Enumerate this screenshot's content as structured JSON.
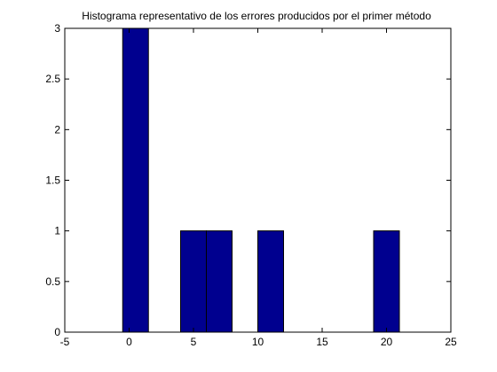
{
  "chart_data": {
    "type": "bar",
    "title": "Histograma representativo de los errores producidos por el primer método",
    "xlabel": "",
    "ylabel": "",
    "xlim": [
      -5,
      25
    ],
    "ylim": [
      0,
      3
    ],
    "x_ticks": [
      -5,
      0,
      5,
      10,
      15,
      20,
      25
    ],
    "x_tick_labels": [
      "-5",
      "0",
      "5",
      "10",
      "15",
      "20",
      "25"
    ],
    "y_ticks": [
      0,
      0.5,
      1,
      1.5,
      2,
      2.5,
      3
    ],
    "y_tick_labels": [
      "0",
      "0.5",
      "1",
      "1.5",
      "2",
      "2.5",
      "3"
    ],
    "grid": false,
    "legend": "none",
    "bin_width": 2,
    "bars": [
      {
        "x": 0.5,
        "value": 3
      },
      {
        "x": 5,
        "value": 1
      },
      {
        "x": 7,
        "value": 1
      },
      {
        "x": 11,
        "value": 1
      },
      {
        "x": 20,
        "value": 1
      }
    ],
    "bar_color": "#00008f",
    "bar_edge_color": "#000000"
  }
}
